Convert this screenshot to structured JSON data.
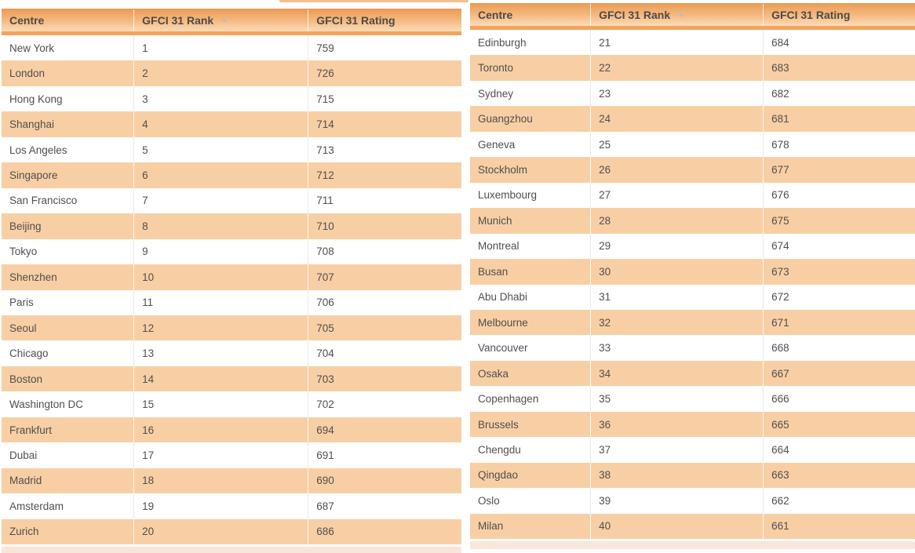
{
  "ui": {
    "sort_icon_glyph": "▲",
    "colors": {
      "header_gradient_top": "#ec9d57",
      "header_gradient_bottom": "#fbdcb8",
      "header_bottom_bar": "#f3a35c",
      "alt_row_background": "#f8cfa4",
      "row_background": "#ffffff",
      "body_text": "#4f4f4f",
      "header_text": "#4c4a46",
      "sort_icon": "#b6bfcd",
      "footer_strip": "#f9e6da"
    }
  },
  "tables": [
    {
      "name": "gfci-31-ranks-1-20",
      "columns": [
        "Centre",
        "GFCI 31 Rank",
        "GFCI 31 Rating"
      ],
      "rows": [
        [
          "New York",
          "1",
          "759"
        ],
        [
          "London",
          "2",
          "726"
        ],
        [
          "Hong Kong",
          "3",
          "715"
        ],
        [
          "Shanghai",
          "4",
          "714"
        ],
        [
          "Los Angeles",
          "5",
          "713"
        ],
        [
          "Singapore",
          "6",
          "712"
        ],
        [
          "San Francisco",
          "7",
          "711"
        ],
        [
          "Beijing",
          "8",
          "710"
        ],
        [
          "Tokyo",
          "9",
          "708"
        ],
        [
          "Shenzhen",
          "10",
          "707"
        ],
        [
          "Paris",
          "11",
          "706"
        ],
        [
          "Seoul",
          "12",
          "705"
        ],
        [
          "Chicago",
          "13",
          "704"
        ],
        [
          "Boston",
          "14",
          "703"
        ],
        [
          "Washington DC",
          "15",
          "702"
        ],
        [
          "Frankfurt",
          "16",
          "694"
        ],
        [
          "Dubai",
          "17",
          "691"
        ],
        [
          "Madrid",
          "18",
          "690"
        ],
        [
          "Amsterdam",
          "19",
          "687"
        ],
        [
          "Zurich",
          "20",
          "686"
        ]
      ]
    },
    {
      "name": "gfci-31-ranks-21-40",
      "columns": [
        "Centre",
        "GFCI 31 Rank",
        "GFCI 31 Rating"
      ],
      "rows": [
        [
          "Edinburgh",
          "21",
          "684"
        ],
        [
          "Toronto",
          "22",
          "683"
        ],
        [
          "Sydney",
          "23",
          "682"
        ],
        [
          "Guangzhou",
          "24",
          "681"
        ],
        [
          "Geneva",
          "25",
          "678"
        ],
        [
          "Stockholm",
          "26",
          "677"
        ],
        [
          "Luxembourg",
          "27",
          "676"
        ],
        [
          "Munich",
          "28",
          "675"
        ],
        [
          "Montreal",
          "29",
          "674"
        ],
        [
          "Busan",
          "30",
          "673"
        ],
        [
          "Abu Dhabi",
          "31",
          "672"
        ],
        [
          "Melbourne",
          "32",
          "671"
        ],
        [
          "Vancouver",
          "33",
          "668"
        ],
        [
          "Osaka",
          "34",
          "667"
        ],
        [
          "Copenhagen",
          "35",
          "666"
        ],
        [
          "Brussels",
          "36",
          "665"
        ],
        [
          "Chengdu",
          "37",
          "664"
        ],
        [
          "Qingdao",
          "38",
          "663"
        ],
        [
          "Oslo",
          "39",
          "662"
        ],
        [
          "Milan",
          "40",
          "661"
        ]
      ]
    }
  ]
}
